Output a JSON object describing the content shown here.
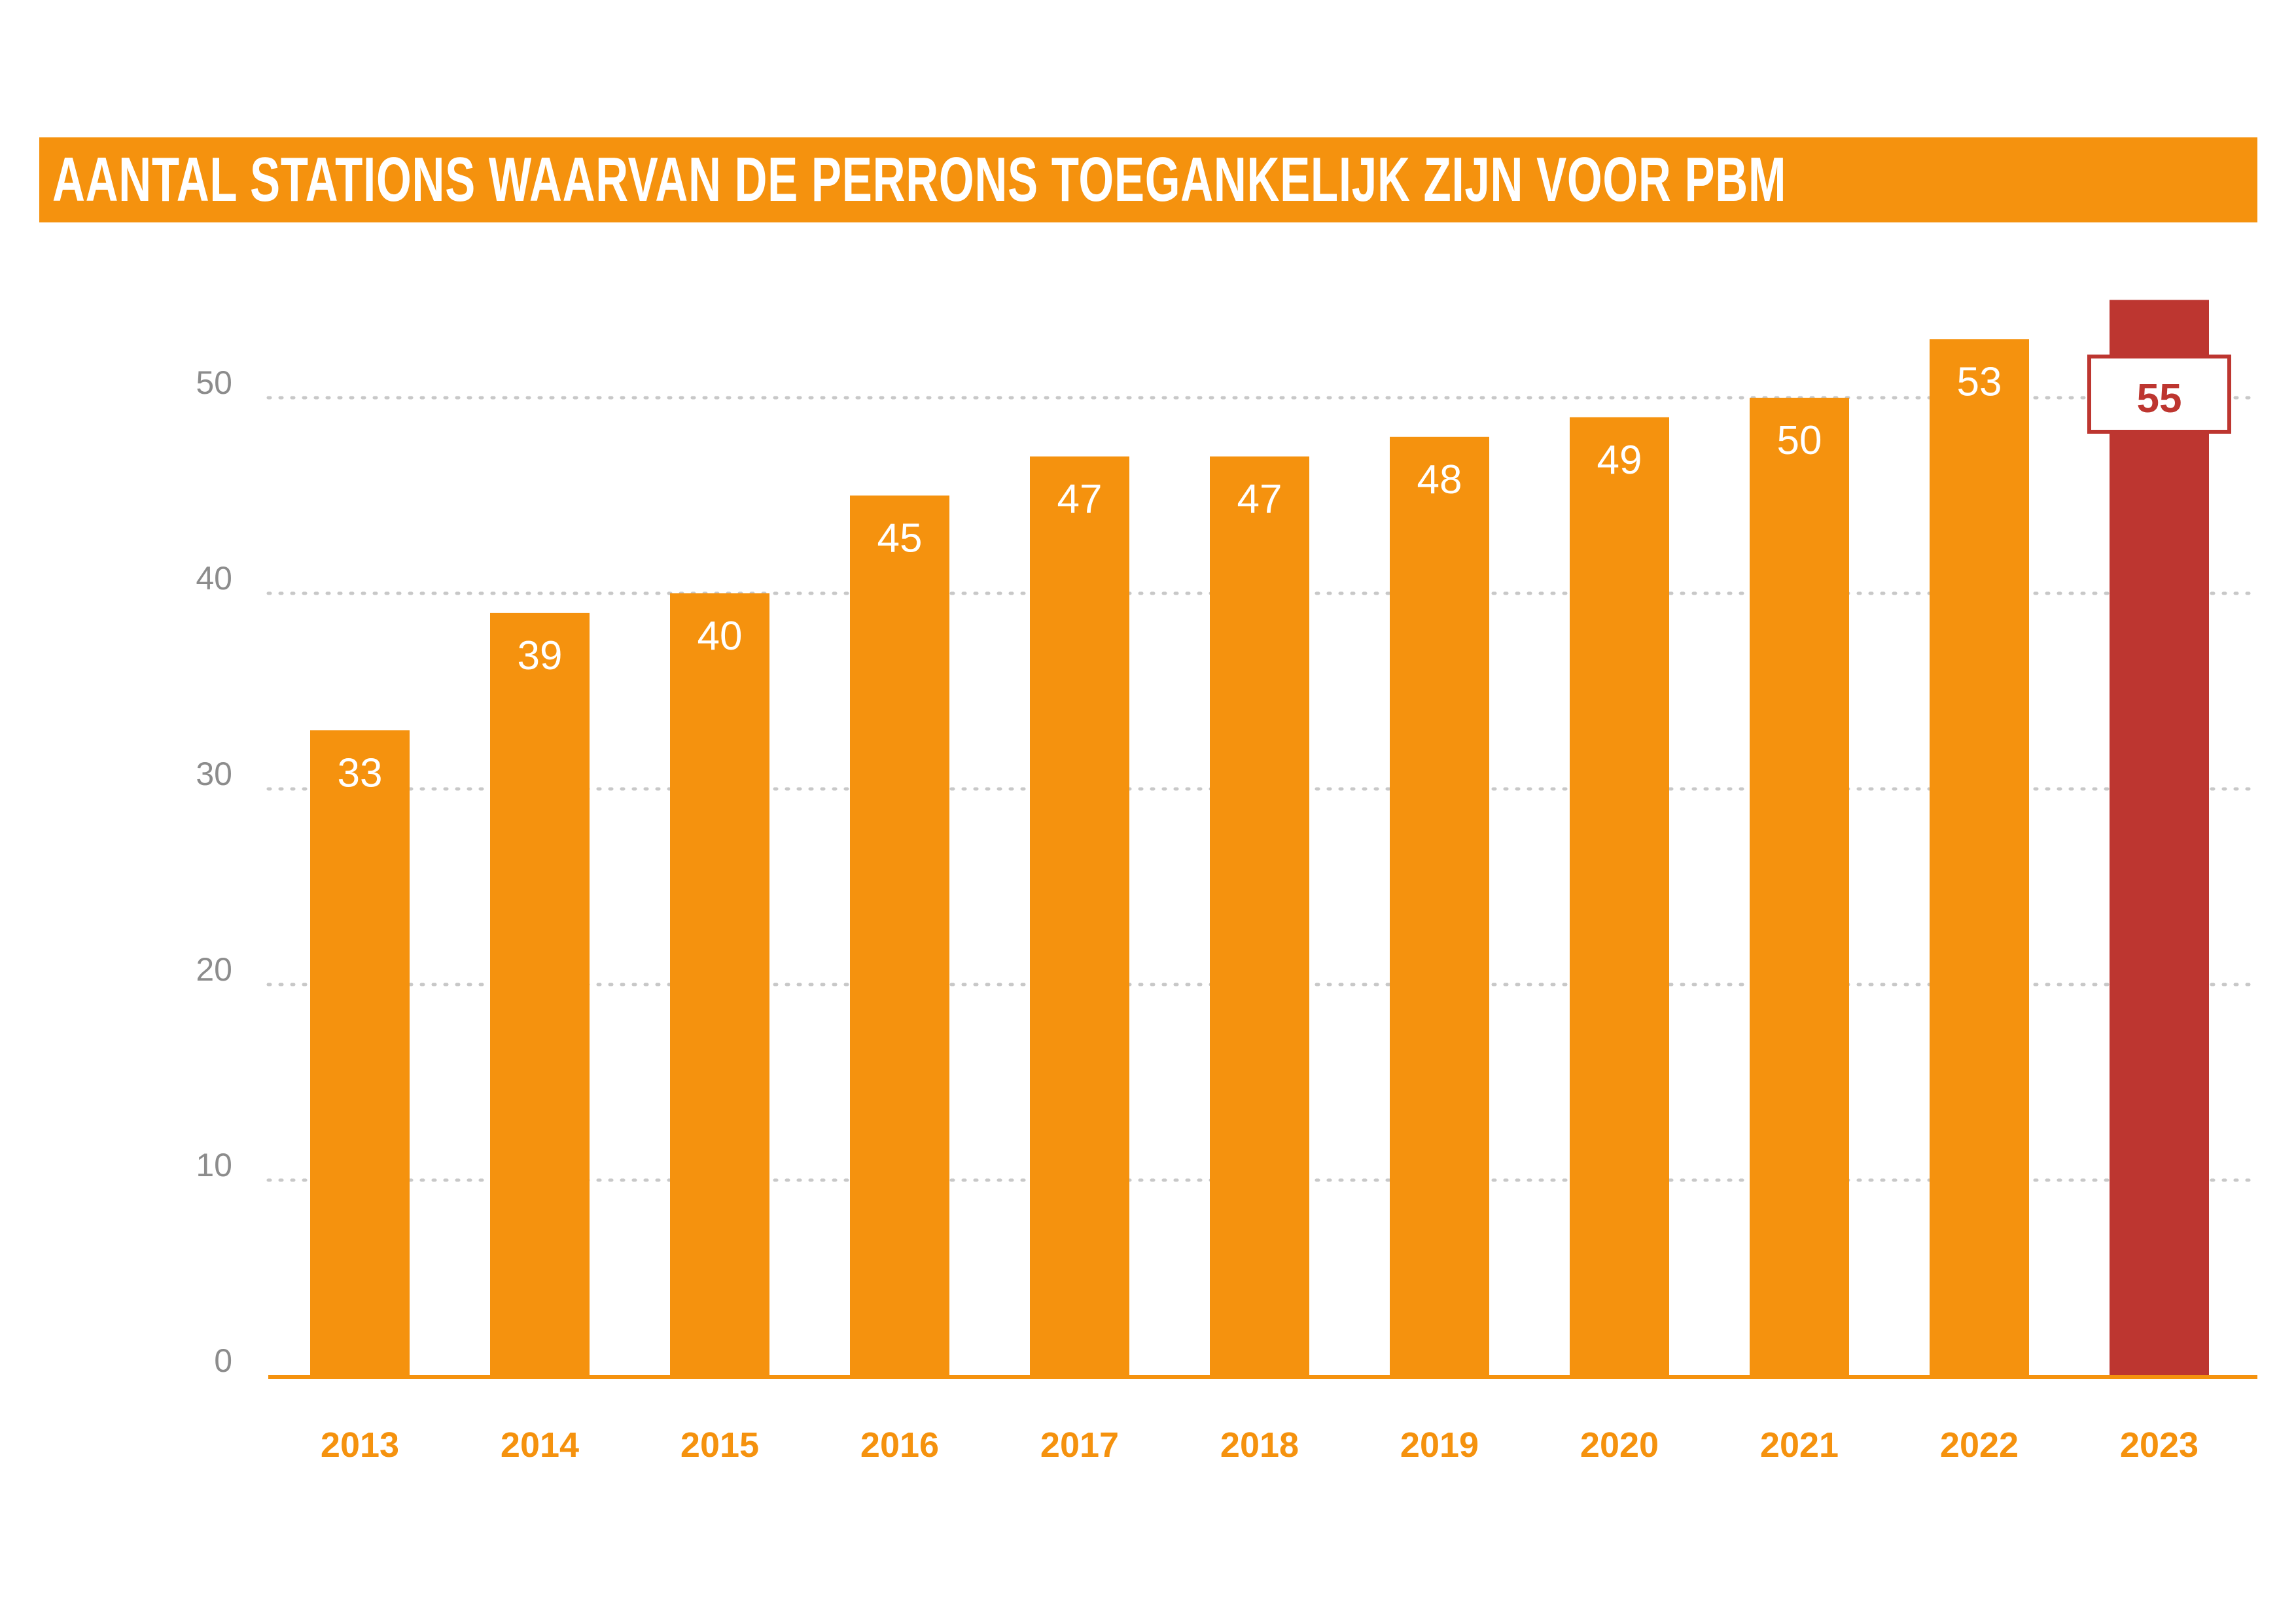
{
  "header": {
    "title": "AANTAL STATIONS WAARVAN DE PERRONS TOEGANKELIJK ZIJN VOOR PBM"
  },
  "colors": {
    "accent": "#F5920E",
    "highlight": "#BD3630",
    "grid": "#C8C8C8",
    "tick_label": "#8C8C8C",
    "bar_label": "#FFFFFF"
  },
  "chart_data": {
    "type": "bar",
    "title": "AANTAL STATIONS WAARVAN DE PERRONS TOEGANKELIJK ZIJN VOOR PBM",
    "xlabel": "",
    "ylabel": "",
    "categories": [
      "2013",
      "2014",
      "2015",
      "2016",
      "2017",
      "2018",
      "2019",
      "2020",
      "2021",
      "2022",
      "2023"
    ],
    "values": [
      33,
      39,
      40,
      45,
      47,
      47,
      48,
      49,
      50,
      53,
      55
    ],
    "value_labels": [
      "33",
      "39",
      "40",
      "45",
      "47",
      "47",
      "48",
      "49",
      "50",
      "53",
      "55"
    ],
    "highlighted_category": "2023",
    "ylim": [
      0,
      55
    ],
    "yticks": [
      0,
      10,
      20,
      30,
      40,
      50
    ],
    "ytick_labels": [
      "0",
      "10",
      "20",
      "30",
      "40",
      "50"
    ],
    "grid": "horizontal-dotted",
    "legend": "none"
  }
}
